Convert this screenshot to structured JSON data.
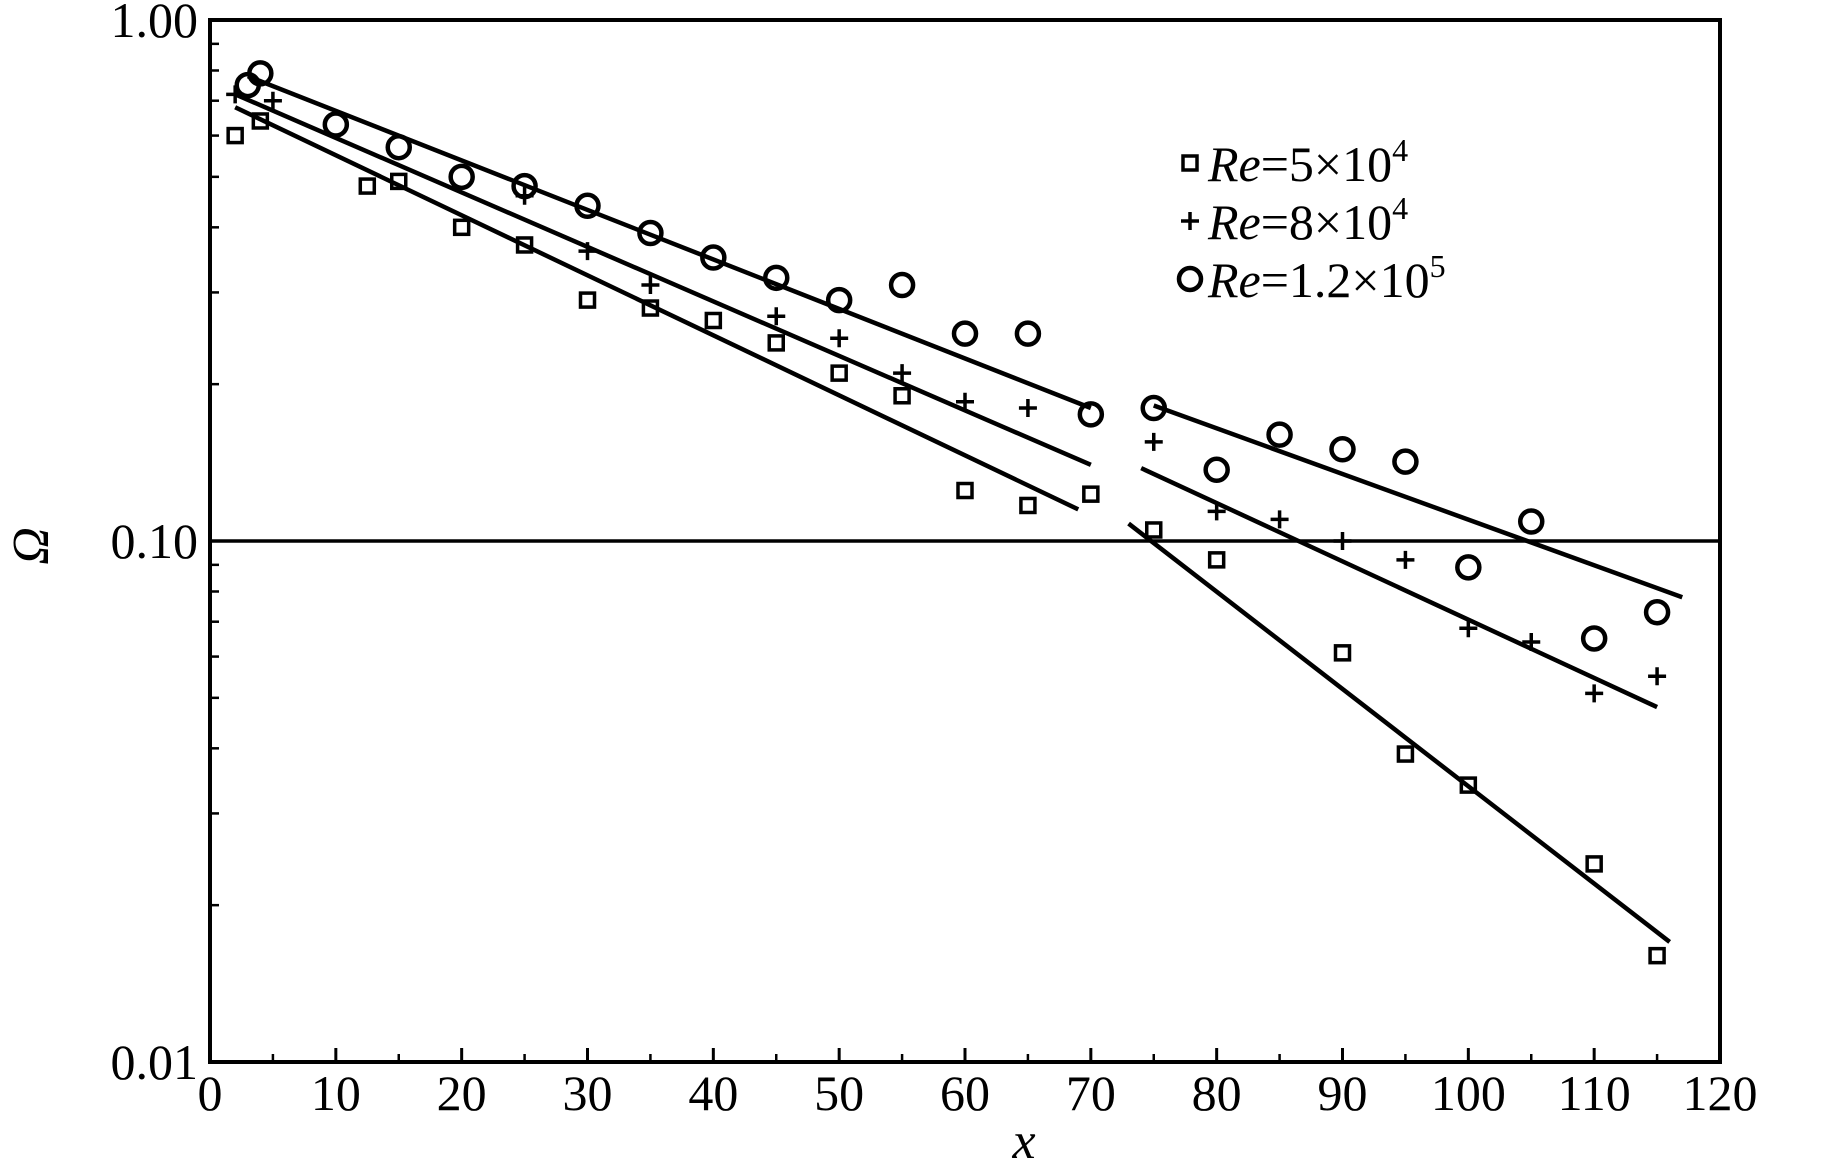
{
  "chart_data": {
    "type": "scatter",
    "title": "",
    "xlabel": "x",
    "ylabel": "Ω",
    "xlim": [
      0,
      120
    ],
    "ylim": [
      0.01,
      1.0
    ],
    "yscale": "log",
    "grid": false,
    "reference_line_y": 0.1,
    "x_ticks": [
      0,
      10,
      20,
      30,
      40,
      50,
      60,
      70,
      80,
      90,
      100,
      110,
      120
    ],
    "x_tick_labels": [
      "0",
      "10",
      "20",
      "30",
      "40",
      "50",
      "60",
      "70",
      "80",
      "90",
      "100",
      "110",
      "120"
    ],
    "y_ticks": [
      0.01,
      0.1,
      1.0
    ],
    "y_tick_labels": [
      "0.01",
      "0.10",
      "1.00"
    ],
    "legend_position": "top-right",
    "series": [
      {
        "name_prefix": "Re",
        "name_eq": "=5×10",
        "name_exp": "4",
        "marker": "square",
        "x": [
          2,
          4,
          12.5,
          15,
          20,
          25,
          30,
          35,
          40,
          45,
          50,
          55,
          60,
          65,
          70,
          75,
          80,
          90,
          95,
          100,
          110,
          115
        ],
        "y": [
          0.6,
          0.64,
          0.48,
          0.49,
          0.4,
          0.37,
          0.29,
          0.28,
          0.265,
          0.24,
          0.21,
          0.19,
          0.125,
          0.117,
          0.123,
          0.105,
          0.092,
          0.061,
          0.039,
          0.034,
          0.024,
          0.016
        ],
        "fit_segments": [
          {
            "x": [
              2,
              69
            ],
            "y": [
              0.68,
              0.115
            ]
          },
          {
            "x": [
              73,
              116
            ],
            "y": [
              0.108,
              0.017
            ]
          }
        ]
      },
      {
        "name_prefix": "Re",
        "name_eq": "=8×10",
        "name_exp": "4",
        "marker": "plus",
        "x": [
          2,
          5,
          25,
          30,
          35,
          45,
          50,
          55,
          60,
          65,
          75,
          80,
          85,
          90,
          95,
          100,
          105,
          110,
          115
        ],
        "y": [
          0.72,
          0.7,
          0.46,
          0.36,
          0.31,
          0.27,
          0.245,
          0.21,
          0.185,
          0.18,
          0.155,
          0.114,
          0.11,
          0.1,
          0.092,
          0.068,
          0.064,
          0.051,
          0.055
        ],
        "fit_segments": [
          {
            "x": [
              2,
              70
            ],
            "y": [
              0.72,
              0.14
            ]
          },
          {
            "x": [
              74,
              115
            ],
            "y": [
              0.138,
              0.048
            ]
          }
        ]
      },
      {
        "name_prefix": "Re",
        "name_eq": "=1.2×10",
        "name_exp": "5",
        "marker": "circle",
        "x": [
          3,
          4,
          10,
          15,
          20,
          25,
          30,
          35,
          40,
          45,
          50,
          55,
          60,
          65,
          70,
          75,
          80,
          85,
          90,
          95,
          100,
          105,
          110,
          115
        ],
        "y": [
          0.75,
          0.79,
          0.63,
          0.57,
          0.5,
          0.48,
          0.44,
          0.39,
          0.35,
          0.32,
          0.29,
          0.31,
          0.25,
          0.25,
          0.175,
          0.18,
          0.137,
          0.16,
          0.15,
          0.142,
          0.089,
          0.109,
          0.065,
          0.073
        ],
        "fit_segments": [
          {
            "x": [
              3,
              70
            ],
            "y": [
              0.78,
              0.18
            ]
          },
          {
            "x": [
              75,
              117
            ],
            "y": [
              0.182,
              0.078
            ]
          }
        ]
      }
    ]
  }
}
